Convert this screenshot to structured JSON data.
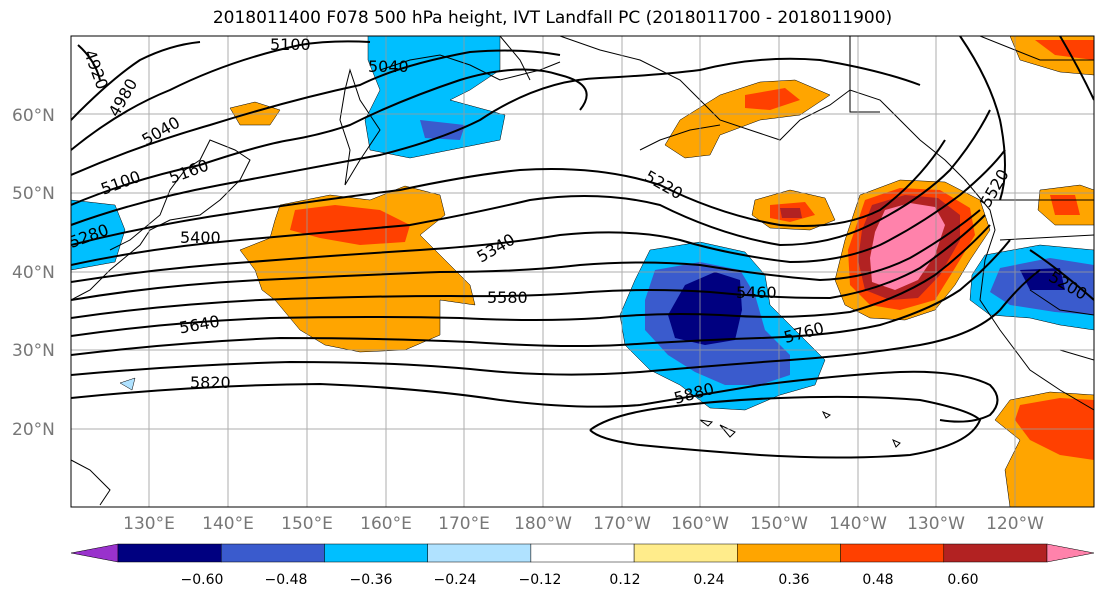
{
  "title": "2018011400 F078 500 hPa height, IVT Landfall PC (2018011700 - 2018011900)",
  "lon_labels": [
    "130°E",
    "140°E",
    "150°E",
    "160°E",
    "170°E",
    "180°W",
    "170°W",
    "160°W",
    "150°W",
    "140°W",
    "130°W",
    "120°W"
  ],
  "lat_labels": [
    "60°N",
    "50°N",
    "40°N",
    "30°N",
    "20°N"
  ],
  "colorbar": {
    "ticks": [
      "−0.60",
      "−0.48",
      "−0.36",
      "−0.24",
      "−0.12",
      "0.12",
      "0.24",
      "0.36",
      "0.48",
      "0.60"
    ],
    "colors": [
      "#9932cc",
      "#000080",
      "#3a5bcd",
      "#00bfff",
      "#b0e2ff",
      "#ffffff",
      "#ffec8b",
      "#ffa500",
      "#ff4000",
      "#b22222",
      "#ff82ab"
    ]
  },
  "contour_labels": [
    "4920",
    "4980",
    "5040",
    "5100",
    "5160",
    "5040",
    "5100",
    "5220",
    "5340",
    "5400",
    "5580",
    "5640",
    "5820",
    "5460",
    "5760",
    "5880",
    "5520",
    "5200",
    "5280"
  ]
}
